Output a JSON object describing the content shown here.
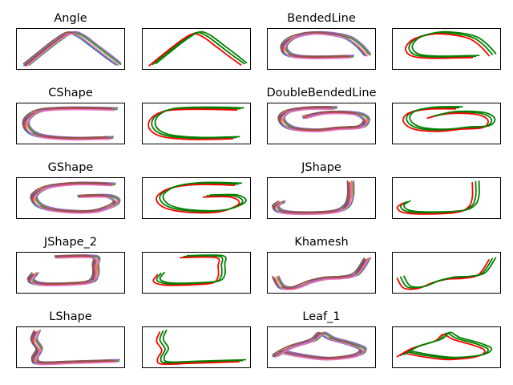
{
  "figure": {
    "rows": 5,
    "cols": 4,
    "colors": {
      "demo": [
        "#1f77b4",
        "#ff7f0e",
        "#2ca02c",
        "#d62728",
        "#9467bd",
        "#8c564b",
        "#e377c2"
      ],
      "red": "#ff0000",
      "green": "#008000"
    }
  },
  "chart_data": [
    {
      "type": "line",
      "title": "Angle",
      "shape": "angle",
      "panel": "demonstrations",
      "series_count": 7,
      "grid": false,
      "axes_ticks": false
    },
    {
      "type": "line",
      "title": "",
      "shape": "angle",
      "panel": "reproductions",
      "series_count": 3,
      "grid": false,
      "axes_ticks": false
    },
    {
      "type": "line",
      "title": "BendedLine",
      "shape": "bended",
      "panel": "demonstrations",
      "series_count": 7,
      "grid": false,
      "axes_ticks": false
    },
    {
      "type": "line",
      "title": "",
      "shape": "bended",
      "panel": "reproductions",
      "series_count": 3,
      "grid": false,
      "axes_ticks": false
    },
    {
      "type": "line",
      "title": "CShape",
      "shape": "cshape",
      "panel": "demonstrations",
      "series_count": 7,
      "grid": false,
      "axes_ticks": false
    },
    {
      "type": "line",
      "title": "",
      "shape": "cshape",
      "panel": "reproductions",
      "series_count": 3,
      "grid": false,
      "axes_ticks": false
    },
    {
      "type": "line",
      "title": "DoubleBendedLine",
      "shape": "dbended",
      "panel": "demonstrations",
      "series_count": 7,
      "grid": false,
      "axes_ticks": false
    },
    {
      "type": "line",
      "title": "",
      "shape": "dbended",
      "panel": "reproductions",
      "series_count": 3,
      "grid": false,
      "axes_ticks": false
    },
    {
      "type": "line",
      "title": "GShape",
      "shape": "gshape",
      "panel": "demonstrations",
      "series_count": 7,
      "grid": false,
      "axes_ticks": false
    },
    {
      "type": "line",
      "title": "",
      "shape": "gshape",
      "panel": "reproductions",
      "series_count": 3,
      "grid": false,
      "axes_ticks": false
    },
    {
      "type": "line",
      "title": "JShape",
      "shape": "jshape",
      "panel": "demonstrations",
      "series_count": 7,
      "grid": false,
      "axes_ticks": false
    },
    {
      "type": "line",
      "title": "",
      "shape": "jshape",
      "panel": "reproductions",
      "series_count": 3,
      "grid": false,
      "axes_ticks": false
    },
    {
      "type": "line",
      "title": "JShape_2",
      "shape": "jshape2",
      "panel": "demonstrations",
      "series_count": 7,
      "grid": false,
      "axes_ticks": false
    },
    {
      "type": "line",
      "title": "",
      "shape": "jshape2",
      "panel": "reproductions",
      "series_count": 3,
      "grid": false,
      "axes_ticks": false
    },
    {
      "type": "line",
      "title": "Khamesh",
      "shape": "khamesh",
      "panel": "demonstrations",
      "series_count": 7,
      "grid": false,
      "axes_ticks": false
    },
    {
      "type": "line",
      "title": "",
      "shape": "khamesh",
      "panel": "reproductions",
      "series_count": 3,
      "grid": false,
      "axes_ticks": false
    },
    {
      "type": "line",
      "title": "LShape",
      "shape": "lshape",
      "panel": "demonstrations",
      "series_count": 7,
      "grid": false,
      "axes_ticks": false
    },
    {
      "type": "line",
      "title": "",
      "shape": "lshape",
      "panel": "reproductions",
      "series_count": 3,
      "grid": false,
      "axes_ticks": false
    },
    {
      "type": "line",
      "title": "Leaf_1",
      "shape": "leaf",
      "panel": "demonstrations",
      "series_count": 7,
      "grid": false,
      "axes_ticks": false
    },
    {
      "type": "line",
      "title": "",
      "shape": "leaf",
      "panel": "reproductions",
      "series_count": 3,
      "grid": false,
      "axes_ticks": false
    }
  ]
}
